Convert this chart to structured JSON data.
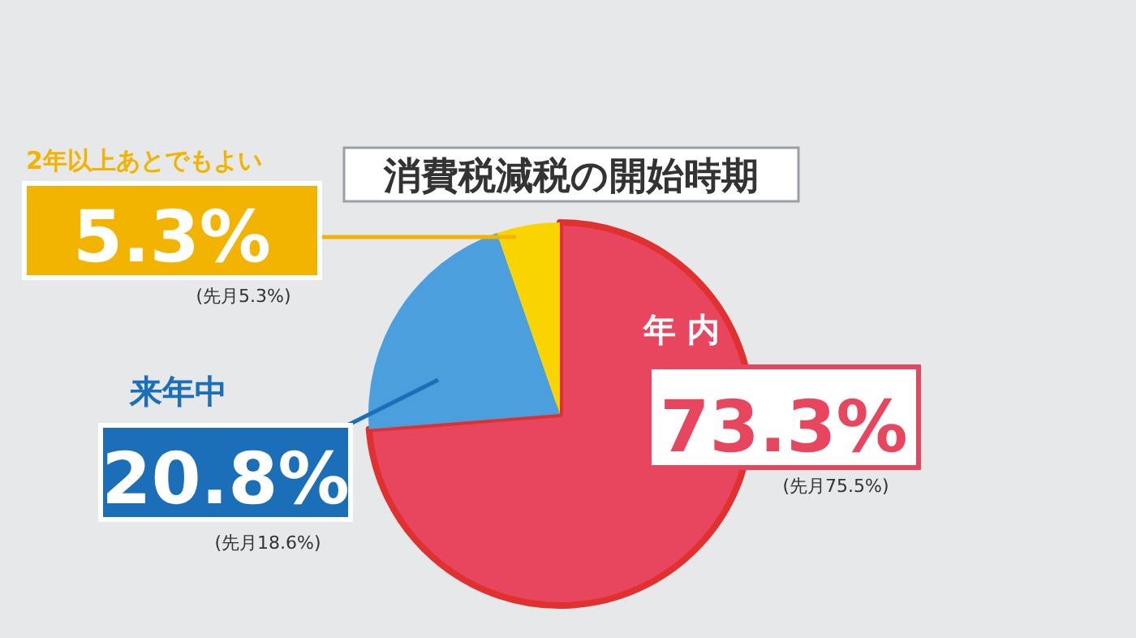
{
  "chart_data": {
    "type": "pie",
    "title": "消費税減税の開始時期",
    "categories": [
      "年 内",
      "来年中",
      "2年以上あとでもよい"
    ],
    "values": [
      73.3,
      20.8,
      5.3
    ],
    "value_labels": [
      "73.3%",
      "20.8%",
      "5.3%"
    ],
    "colors": [
      "#e8455f",
      "#4a9fdc",
      "#fad400"
    ],
    "annotations": [
      "(先月75.5%)",
      "(先月18.6%)",
      "(先月5.3%)"
    ]
  }
}
